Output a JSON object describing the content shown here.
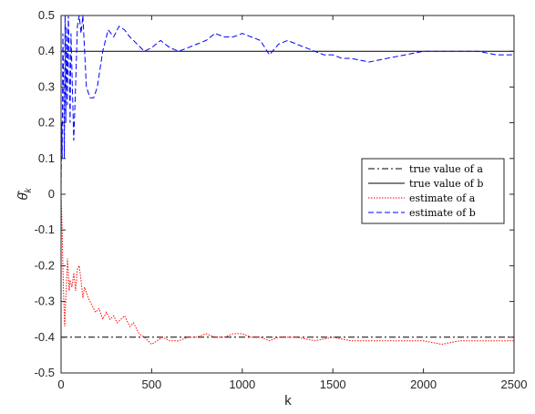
{
  "chart_data": {
    "type": "line",
    "xlabel": "k",
    "ylabel": "θ̂_k",
    "xlim": [
      0,
      2500
    ],
    "ylim": [
      -0.5,
      0.5
    ],
    "xticks": [
      0,
      500,
      1000,
      1500,
      2000,
      2500
    ],
    "yticks": [
      -0.5,
      -0.4,
      -0.3,
      -0.2,
      -0.1,
      0,
      0.1,
      0.2,
      0.3,
      0.4,
      0.5
    ],
    "xtick_labels": [
      "0",
      "500",
      "1000",
      "1500",
      "2000",
      "2500"
    ],
    "ytick_labels": [
      "-0.5",
      "-0.4",
      "-0.3",
      "-0.2",
      "-0.1",
      "0",
      "0.1",
      "0.2",
      "0.3",
      "0.4",
      "0.5"
    ],
    "grid": false,
    "legend_position": "right",
    "series": [
      {
        "name": "true value of a",
        "style": "dash-dot",
        "color": "#000000",
        "x": [
          0,
          2500
        ],
        "y": [
          -0.4,
          -0.4
        ]
      },
      {
        "name": "true value of b",
        "style": "solid",
        "color": "#000000",
        "x": [
          0,
          2500
        ],
        "y": [
          0.4,
          0.4
        ]
      },
      {
        "name": "estimate of a",
        "style": "dotted",
        "color": "#ff0000",
        "x": [
          0,
          3,
          6,
          10,
          15,
          20,
          25,
          30,
          35,
          40,
          45,
          50,
          60,
          70,
          80,
          90,
          100,
          110,
          120,
          130,
          150,
          170,
          190,
          210,
          230,
          250,
          270,
          290,
          310,
          330,
          350,
          380,
          400,
          430,
          460,
          500,
          530,
          560,
          600,
          650,
          700,
          750,
          800,
          850,
          900,
          950,
          1000,
          1050,
          1100,
          1150,
          1200,
          1300,
          1400,
          1500,
          1600,
          1700,
          1800,
          1900,
          2000,
          2100,
          2200,
          2300,
          2400,
          2500
        ],
        "y": [
          0.0,
          -0.05,
          -0.1,
          -0.2,
          -0.3,
          -0.37,
          -0.3,
          -0.25,
          -0.18,
          -0.22,
          -0.27,
          -0.24,
          -0.26,
          -0.22,
          -0.27,
          -0.21,
          -0.2,
          -0.24,
          -0.29,
          -0.26,
          -0.29,
          -0.31,
          -0.33,
          -0.32,
          -0.35,
          -0.33,
          -0.35,
          -0.34,
          -0.36,
          -0.35,
          -0.34,
          -0.37,
          -0.36,
          -0.39,
          -0.4,
          -0.42,
          -0.41,
          -0.4,
          -0.41,
          -0.41,
          -0.4,
          -0.4,
          -0.39,
          -0.4,
          -0.4,
          -0.39,
          -0.39,
          -0.4,
          -0.4,
          -0.41,
          -0.4,
          -0.4,
          -0.41,
          -0.4,
          -0.41,
          -0.41,
          -0.41,
          -0.41,
          -0.41,
          -0.42,
          -0.41,
          -0.41,
          -0.41,
          -0.41
        ]
      },
      {
        "name": "estimate of b",
        "style": "dashed",
        "color": "#0000ff",
        "x": [
          0,
          3,
          6,
          10,
          14,
          18,
          22,
          26,
          30,
          35,
          40,
          45,
          50,
          55,
          60,
          70,
          80,
          90,
          100,
          110,
          120,
          140,
          160,
          180,
          200,
          230,
          260,
          290,
          320,
          350,
          380,
          420,
          460,
          500,
          550,
          600,
          650,
          700,
          750,
          800,
          850,
          900,
          950,
          1000,
          1050,
          1100,
          1150,
          1200,
          1250,
          1300,
          1350,
          1400,
          1450,
          1500,
          1550,
          1600,
          1700,
          1800,
          1900,
          2000,
          2100,
          2200,
          2300,
          2400,
          2450,
          2500
        ],
        "y": [
          0.0,
          0.2,
          0.1,
          0.45,
          0.3,
          0.1,
          0.5,
          0.2,
          0.47,
          0.25,
          0.5,
          0.4,
          0.2,
          0.45,
          0.35,
          0.15,
          0.3,
          0.47,
          0.5,
          0.45,
          0.5,
          0.3,
          0.27,
          0.27,
          0.3,
          0.4,
          0.46,
          0.44,
          0.47,
          0.46,
          0.44,
          0.42,
          0.4,
          0.41,
          0.43,
          0.41,
          0.4,
          0.41,
          0.42,
          0.43,
          0.45,
          0.44,
          0.44,
          0.45,
          0.44,
          0.43,
          0.39,
          0.42,
          0.43,
          0.42,
          0.41,
          0.4,
          0.39,
          0.39,
          0.38,
          0.38,
          0.37,
          0.38,
          0.39,
          0.4,
          0.4,
          0.4,
          0.4,
          0.39,
          0.39,
          0.39
        ]
      }
    ]
  }
}
